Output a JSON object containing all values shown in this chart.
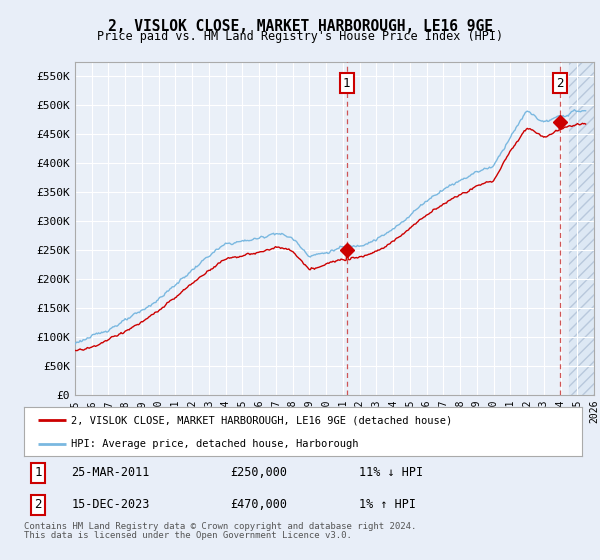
{
  "title": "2, VISLOK CLOSE, MARKET HARBOROUGH, LE16 9GE",
  "subtitle": "Price paid vs. HM Land Registry's House Price Index (HPI)",
  "ylim": [
    0,
    575000
  ],
  "yticks": [
    0,
    50000,
    100000,
    150000,
    200000,
    250000,
    300000,
    350000,
    400000,
    450000,
    500000,
    550000
  ],
  "ytick_labels": [
    "£0",
    "£50K",
    "£100K",
    "£150K",
    "£200K",
    "£250K",
    "£300K",
    "£350K",
    "£400K",
    "£450K",
    "£500K",
    "£550K"
  ],
  "hpi_color": "#7ab8e0",
  "price_color": "#cc0000",
  "point1_year": 2011.23,
  "point1_price": 250000,
  "point2_year": 2023.96,
  "point2_price": 470000,
  "legend_label1": "2, VISLOK CLOSE, MARKET HARBOROUGH, LE16 9GE (detached house)",
  "legend_label2": "HPI: Average price, detached house, Harborough",
  "note1_num": "1",
  "note1_date": "25-MAR-2011",
  "note1_price": "£250,000",
  "note1_hpi": "11% ↓ HPI",
  "note2_num": "2",
  "note2_date": "15-DEC-2023",
  "note2_price": "£470,000",
  "note2_hpi": "1% ↑ HPI",
  "footer": "Contains HM Land Registry data © Crown copyright and database right 2024.\nThis data is licensed under the Open Government Licence v3.0.",
  "background_color": "#e8eef8",
  "plot_bg_color": "#eaf0f8",
  "xmin": 1995,
  "xmax": 2026,
  "hpi_knots_x": [
    1995,
    1996,
    1997,
    1998,
    1999,
    2000,
    2001,
    2002,
    2003,
    2004,
    2005,
    2006,
    2007,
    2008,
    2009,
    2010,
    2011,
    2012,
    2013,
    2014,
    2015,
    2016,
    2017,
    2018,
    2019,
    2020,
    2021,
    2022,
    2023,
    2024,
    2025
  ],
  "hpi_knots_y": [
    90000,
    100000,
    113000,
    128000,
    145000,
    165000,
    190000,
    215000,
    240000,
    260000,
    265000,
    270000,
    280000,
    270000,
    240000,
    245000,
    255000,
    258000,
    268000,
    285000,
    310000,
    335000,
    355000,
    370000,
    385000,
    395000,
    445000,
    490000,
    470000,
    480000,
    490000
  ],
  "price_knots_x": [
    1995,
    1996,
    1997,
    1998,
    1999,
    2000,
    2001,
    2002,
    2003,
    2004,
    2005,
    2006,
    2007,
    2008,
    2009,
    2010,
    2011,
    2012,
    2013,
    2014,
    2015,
    2016,
    2017,
    2018,
    2019,
    2020,
    2021,
    2022,
    2023,
    2024,
    2025
  ],
  "price_knots_y": [
    75000,
    82000,
    95000,
    110000,
    125000,
    145000,
    168000,
    192000,
    215000,
    235000,
    240000,
    245000,
    255000,
    248000,
    215000,
    225000,
    235000,
    238000,
    248000,
    264000,
    288000,
    310000,
    330000,
    345000,
    360000,
    370000,
    420000,
    462000,
    445000,
    458000,
    468000
  ],
  "hatch_start": 2024.5
}
